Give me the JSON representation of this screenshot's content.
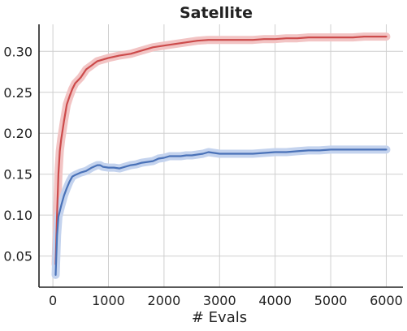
{
  "chart_data": {
    "type": "line",
    "title": "Satellite",
    "xlabel": "# Evals",
    "ylabel": "",
    "xlim": [
      -250,
      6300
    ],
    "ylim": [
      0.012,
      0.333
    ],
    "xticks": [
      0,
      1000,
      2000,
      3000,
      4000,
      5000,
      6000
    ],
    "xtick_labels": [
      "0",
      "1000",
      "2000",
      "3000",
      "4000",
      "5000",
      "6000"
    ],
    "yticks": [
      0.05,
      0.1,
      0.15,
      0.2,
      0.25,
      0.3
    ],
    "ytick_labels": [
      "0.05",
      "0.10",
      "0.15",
      "0.20",
      "0.25",
      "0.30"
    ],
    "grid": true,
    "legend": "none",
    "series": [
      {
        "color": "#cc4b4b",
        "band_color": "#f2c4c4",
        "points": [
          [
            50,
            0.04
          ],
          [
            75,
            0.1
          ],
          [
            100,
            0.15
          ],
          [
            125,
            0.178
          ],
          [
            150,
            0.193
          ],
          [
            200,
            0.215
          ],
          [
            250,
            0.235
          ],
          [
            300,
            0.245
          ],
          [
            350,
            0.254
          ],
          [
            400,
            0.261
          ],
          [
            500,
            0.268
          ],
          [
            600,
            0.278
          ],
          [
            700,
            0.283
          ],
          [
            800,
            0.288
          ],
          [
            900,
            0.29
          ],
          [
            1000,
            0.292
          ],
          [
            1200,
            0.295
          ],
          [
            1400,
            0.297
          ],
          [
            1600,
            0.301
          ],
          [
            1800,
            0.305
          ],
          [
            2000,
            0.307
          ],
          [
            2200,
            0.309
          ],
          [
            2400,
            0.311
          ],
          [
            2600,
            0.313
          ],
          [
            2800,
            0.314
          ],
          [
            3000,
            0.314
          ],
          [
            3200,
            0.314
          ],
          [
            3400,
            0.314
          ],
          [
            3600,
            0.314
          ],
          [
            3800,
            0.315
          ],
          [
            4000,
            0.315
          ],
          [
            4200,
            0.316
          ],
          [
            4400,
            0.316
          ],
          [
            4600,
            0.317
          ],
          [
            4800,
            0.317
          ],
          [
            5000,
            0.317
          ],
          [
            5200,
            0.317
          ],
          [
            5400,
            0.317
          ],
          [
            5600,
            0.318
          ],
          [
            5800,
            0.318
          ],
          [
            6000,
            0.318
          ]
        ]
      },
      {
        "color": "#4a72b8",
        "band_color": "#c4d3ee",
        "points": [
          [
            50,
            0.027
          ],
          [
            75,
            0.075
          ],
          [
            100,
            0.098
          ],
          [
            150,
            0.112
          ],
          [
            200,
            0.124
          ],
          [
            250,
            0.133
          ],
          [
            300,
            0.141
          ],
          [
            350,
            0.147
          ],
          [
            400,
            0.149
          ],
          [
            500,
            0.152
          ],
          [
            600,
            0.154
          ],
          [
            700,
            0.158
          ],
          [
            800,
            0.161
          ],
          [
            850,
            0.161
          ],
          [
            900,
            0.159
          ],
          [
            1000,
            0.158
          ],
          [
            1100,
            0.158
          ],
          [
            1200,
            0.157
          ],
          [
            1300,
            0.159
          ],
          [
            1400,
            0.161
          ],
          [
            1500,
            0.162
          ],
          [
            1600,
            0.164
          ],
          [
            1700,
            0.165
          ],
          [
            1800,
            0.166
          ],
          [
            1900,
            0.169
          ],
          [
            2000,
            0.17
          ],
          [
            2100,
            0.172
          ],
          [
            2200,
            0.172
          ],
          [
            2300,
            0.172
          ],
          [
            2400,
            0.173
          ],
          [
            2500,
            0.173
          ],
          [
            2600,
            0.174
          ],
          [
            2700,
            0.175
          ],
          [
            2800,
            0.177
          ],
          [
            2900,
            0.176
          ],
          [
            3000,
            0.175
          ],
          [
            3200,
            0.175
          ],
          [
            3400,
            0.175
          ],
          [
            3600,
            0.175
          ],
          [
            3800,
            0.176
          ],
          [
            4000,
            0.177
          ],
          [
            4200,
            0.177
          ],
          [
            4400,
            0.178
          ],
          [
            4600,
            0.179
          ],
          [
            4800,
            0.179
          ],
          [
            5000,
            0.18
          ],
          [
            5200,
            0.18
          ],
          [
            5400,
            0.18
          ],
          [
            5600,
            0.18
          ],
          [
            5800,
            0.18
          ],
          [
            6000,
            0.18
          ]
        ]
      }
    ]
  }
}
